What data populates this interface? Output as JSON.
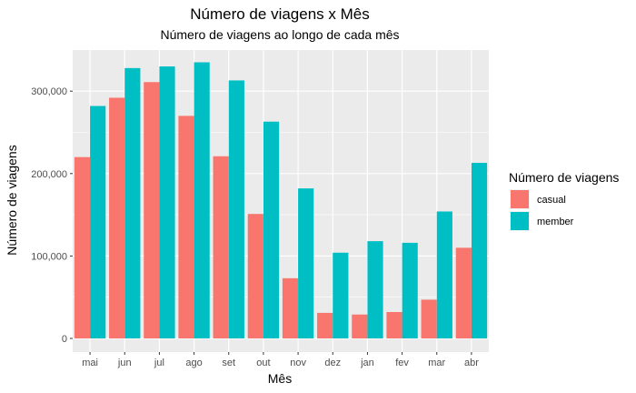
{
  "chart_data": {
    "type": "bar",
    "title": "Número de viagens x Mês",
    "subtitle": "Número de viagens ao longo de cada mês",
    "xlabel": "Mês",
    "ylabel": "Número de viagens",
    "categories": [
      "mai",
      "jun",
      "jul",
      "ago",
      "set",
      "out",
      "nov",
      "dez",
      "jan",
      "fev",
      "mar",
      "abr"
    ],
    "series": [
      {
        "name": "casual",
        "color": "#F8766D",
        "values": [
          220000,
          292000,
          311000,
          270000,
          221000,
          151000,
          73000,
          31000,
          29000,
          32000,
          47000,
          110000
        ]
      },
      {
        "name": "member",
        "color": "#00BFC4",
        "values": [
          282000,
          328000,
          330000,
          335000,
          313000,
          263000,
          182000,
          104000,
          118000,
          116000,
          154000,
          213000
        ]
      }
    ],
    "ylim": [
      0,
      350000
    ],
    "yticks": [
      0,
      100000,
      200000,
      300000
    ],
    "ytick_labels": [
      "0",
      "100,000",
      "200,000",
      "300,000"
    ],
    "legend": {
      "title": "Número de viagens",
      "position": "right"
    },
    "grid": true,
    "panel_background": "#EBEBEB"
  }
}
